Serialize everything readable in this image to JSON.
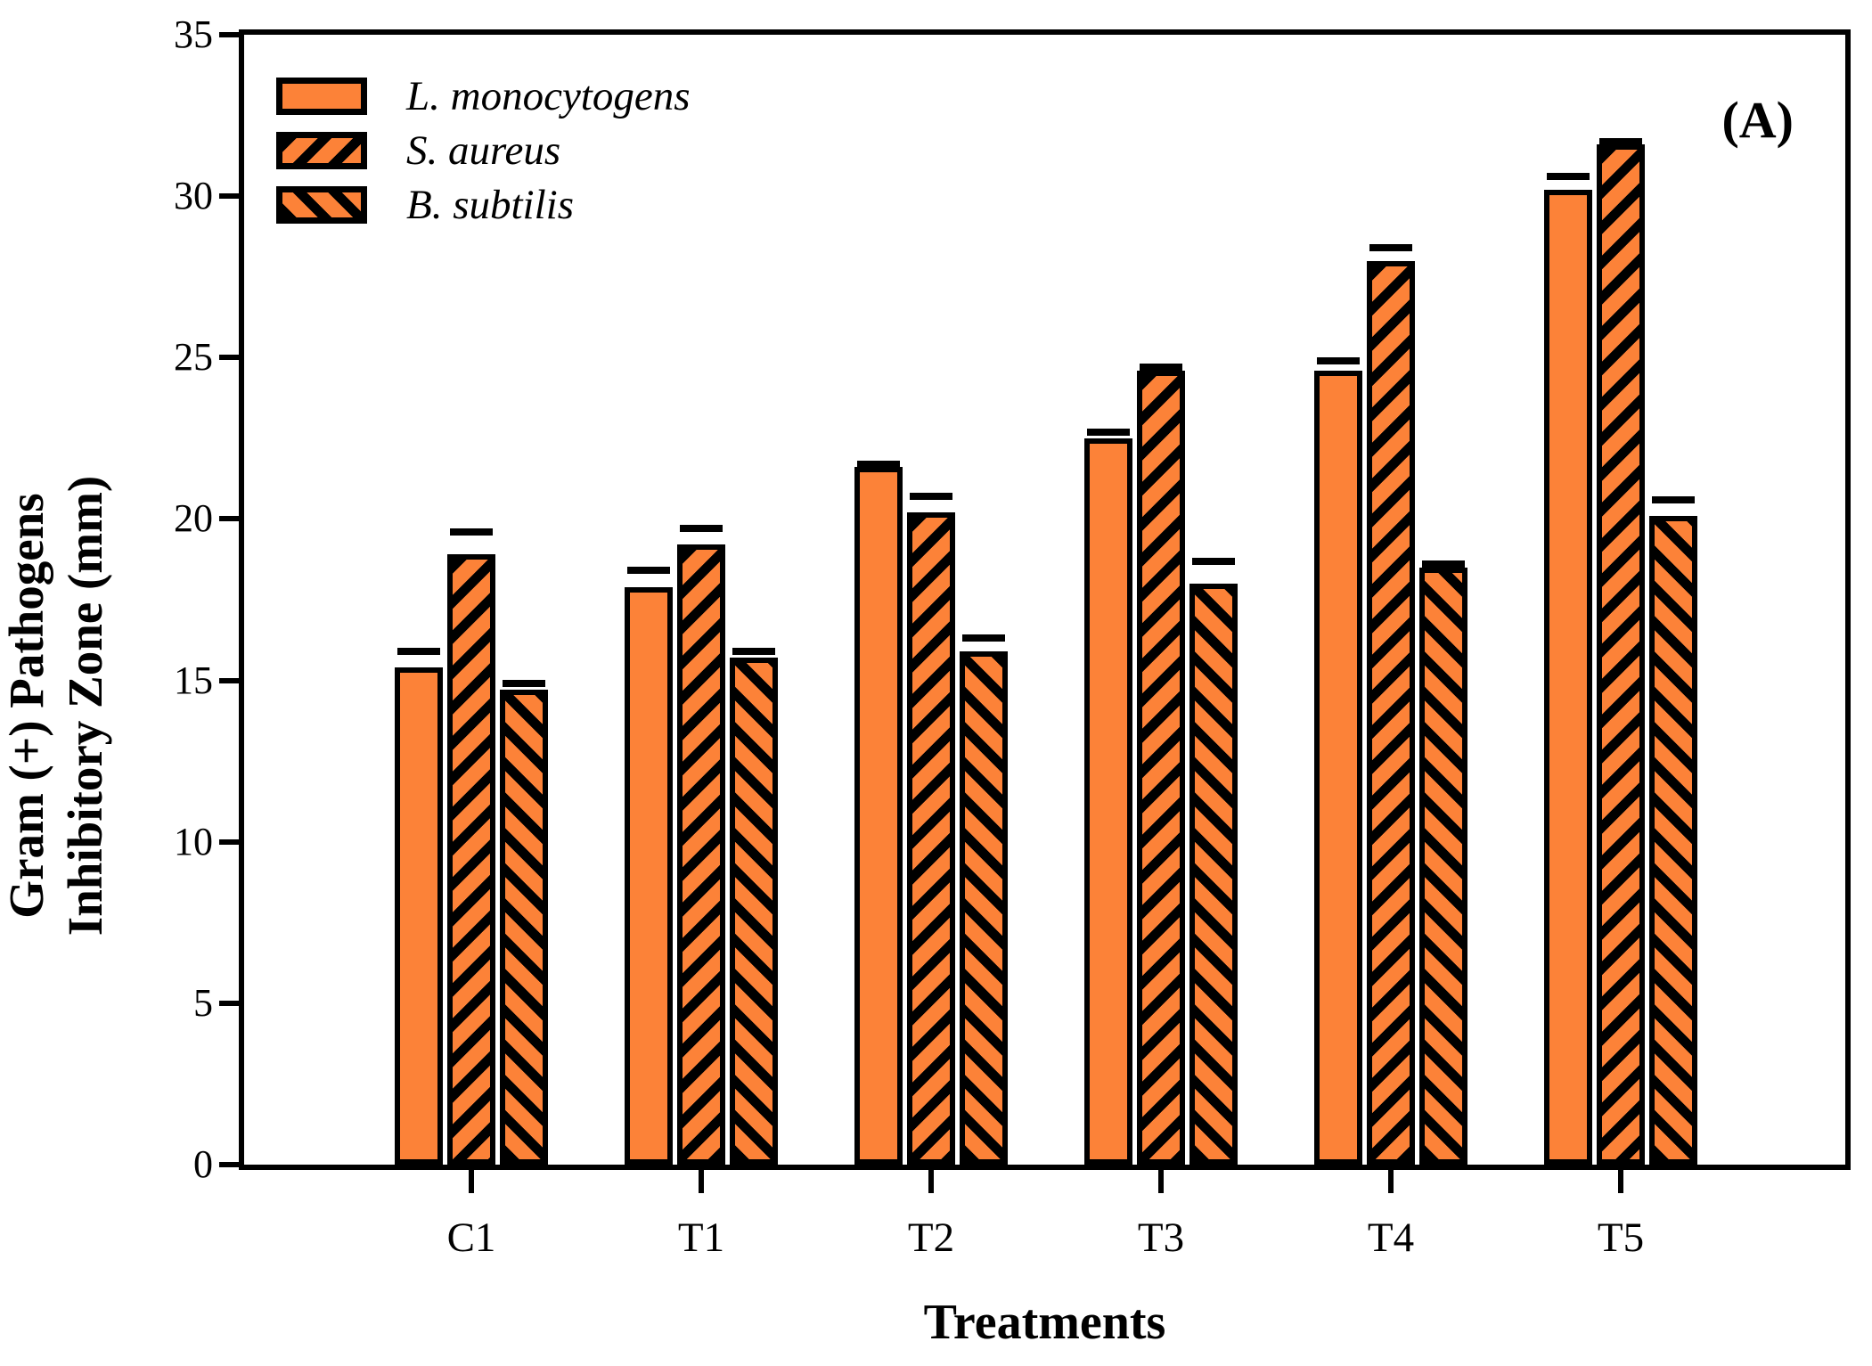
{
  "panel_label": "(A)",
  "chart_data": {
    "type": "bar",
    "title": "",
    "xlabel": "Treatments",
    "ylabel_lines": [
      "Gram (+) Pathogens",
      "Inhibitory Zone (mm)"
    ],
    "categories": [
      "C1",
      "T1",
      "T2",
      "T3",
      "T4",
      "T5"
    ],
    "series": [
      {
        "name": "L. monocytogens",
        "hatch": "solid",
        "values": [
          15.4,
          17.9,
          21.6,
          22.5,
          24.6,
          30.2
        ],
        "errors": [
          0.5,
          0.5,
          0.1,
          0.2,
          0.3,
          0.4
        ]
      },
      {
        "name": "S. aureus",
        "hatch": "forward-diagonal",
        "values": [
          18.9,
          19.2,
          20.2,
          24.6,
          28.0,
          31.6
        ],
        "errors": [
          0.7,
          0.5,
          0.5,
          0.1,
          0.4,
          0.1
        ]
      },
      {
        "name": "B. subtilis",
        "hatch": "backward-diagonal",
        "values": [
          14.7,
          15.7,
          15.9,
          18.0,
          18.5,
          20.1
        ],
        "errors": [
          0.2,
          0.2,
          0.4,
          0.7,
          0.1,
          0.5
        ]
      }
    ],
    "ylim": [
      0,
      35
    ],
    "yticks": [
      0,
      5,
      10,
      15,
      20,
      25,
      30,
      35
    ],
    "grid": false,
    "legend_position": "top-left-inside",
    "bar_color": "#FC8238",
    "outline_color": "#000000",
    "error_bar_color": "#000000"
  }
}
